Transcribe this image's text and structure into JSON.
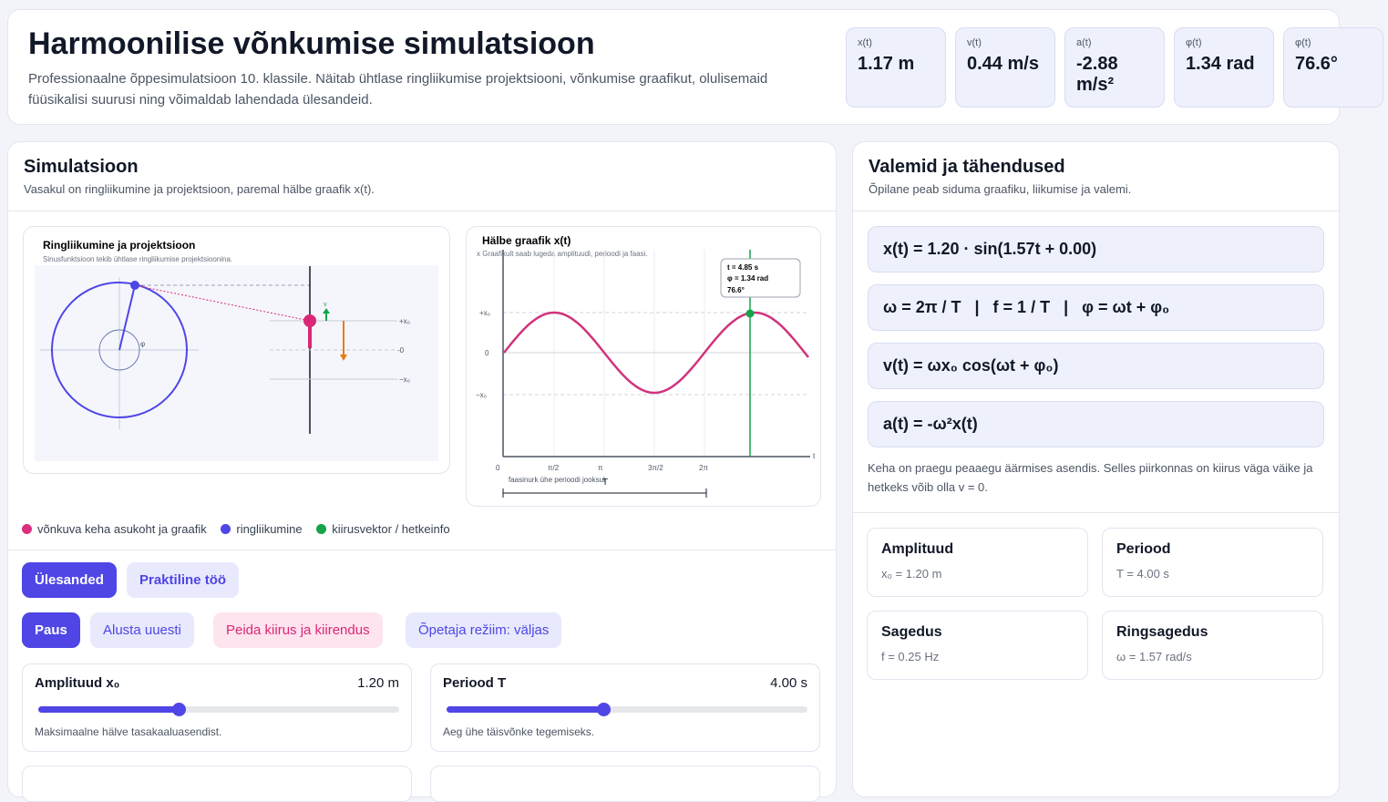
{
  "header": {
    "title": "Harmoonilise võnkumise simulatsioon",
    "subtitle": "Professionaalne õppesimulatsioon 10. klassile. Näitab ühtlase ringliikumise projektsiooni, võnkumise graafikut, olulisemaid füüsikalisi suurusi ning võimaldab lahendada ülesandeid."
  },
  "stats": [
    {
      "label": "x(t)",
      "value": "1.17 m"
    },
    {
      "label": "v(t)",
      "value": "0.44 m/s"
    },
    {
      "label": "a(t)",
      "value": "-2.88 m/s²"
    },
    {
      "label": "φ(t)",
      "value": "1.34 rad"
    },
    {
      "label": "φ(t)",
      "value": "76.6°"
    }
  ],
  "simulation": {
    "title": "Simulatsioon",
    "subtitle": "Vasakul on ringliikumine ja projektsioon, paremal hälbe graafik x(t)."
  },
  "circle_panel": {
    "title": "Ringliikumine ja projektsioon",
    "subtitle": "Sinusfunktsioon tekib ühtlase ringliikumise projektsioonina.",
    "angle_label": "φ",
    "velocity_label": "v",
    "levels": [
      "+x₀",
      "-0",
      "−x₀"
    ]
  },
  "graph_panel": {
    "title": "Hälbe graafik x(t)",
    "subtitle": "x Graafikult saab lugeda amplituudi, perioodi ja faasi.",
    "y_labels": [
      "+x₀",
      "0",
      "−x₀"
    ],
    "x_labels": [
      "0",
      "π/2",
      "π",
      "3π/2",
      "2π"
    ],
    "x_axis": "t",
    "tooltip": [
      "t = 4.85 s",
      "φ = 1.34 rad",
      "76.6°"
    ],
    "note": "faasinurk ühe perioodi jooksul",
    "period_label": "T"
  },
  "legend": [
    "võnkuva keha asukoht ja graafik",
    "ringliikumine",
    "kiirusvektor / hetkeinfo"
  ],
  "tabs": [
    "Ülesanded",
    "Praktiline töö"
  ],
  "buttons": [
    "Paus",
    "Alusta uuesti",
    "Peida kiirus ja kiirendus",
    "Õpetaja režiim: väljas"
  ],
  "sliders": [
    {
      "label": "Amplituud x₀",
      "value": "1.20 m",
      "note": "Maksimaalne hälve tasakaaluasendist."
    },
    {
      "label": "Periood T",
      "value": "4.00 s",
      "note": "Aeg ühe täisvõnke tegemiseks."
    }
  ],
  "formulas_panel": {
    "title": "Valemid ja tähendused",
    "subtitle": "Õpilane peab siduma graafiku, liikumise ja valemi.",
    "formulas": [
      "x(t) = 1.20 · sin(1.57t + 0.00)",
      "ω = 2π / T   |   f = 1 / T   |   φ = ωt + φ₀",
      "v(t) = ωx₀ cos(ωt + φ₀)",
      "a(t) = -ω²x(t)"
    ],
    "note": "Keha on praegu peaaegu äärmises asendis. Selles piirkonnas on kiirus väga väike ja hetkeks võib olla v = 0.",
    "cards": [
      {
        "title": "Amplituud",
        "value": "x₀ = 1.20 m"
      },
      {
        "title": "Periood",
        "value": "T = 4.00 s"
      },
      {
        "title": "Sagedus",
        "value": "f = 0.25 Hz"
      },
      {
        "title": "Ringsagedus",
        "value": "ω = 1.57 rad/s"
      }
    ]
  }
}
